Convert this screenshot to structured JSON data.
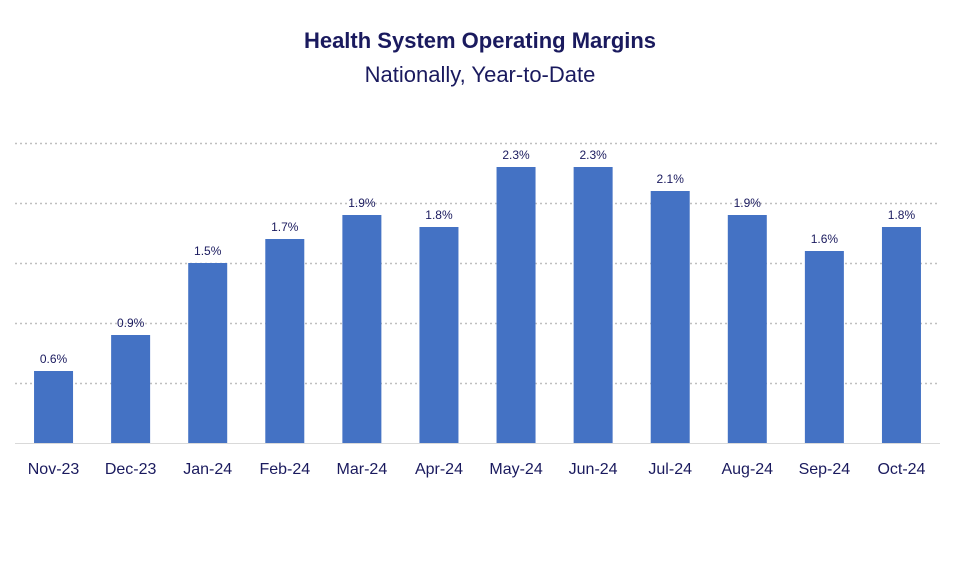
{
  "chart_data": {
    "type": "bar",
    "title": "Health System Operating Margins",
    "subtitle": "Nationally, Year-to-Date",
    "xlabel": "",
    "ylabel": "",
    "categories": [
      "Nov-23",
      "Dec-23",
      "Jan-24",
      "Feb-24",
      "Mar-24",
      "Apr-24",
      "May-24",
      "Jun-24",
      "Jul-24",
      "Aug-24",
      "Sep-24",
      "Oct-24"
    ],
    "values": [
      0.6,
      0.9,
      1.5,
      1.7,
      1.9,
      1.8,
      2.3,
      2.3,
      2.1,
      1.9,
      1.6,
      1.8
    ],
    "data_labels": [
      "0.6%",
      "0.9%",
      "1.5%",
      "1.7%",
      "1.9%",
      "1.8%",
      "2.3%",
      "2.3%",
      "2.1%",
      "1.9%",
      "1.6%",
      "1.8%"
    ],
    "ylim": [
      0,
      2.5
    ],
    "gridlines": [
      0.5,
      1.0,
      1.5,
      2.0,
      2.5
    ],
    "grid": true,
    "legend": "none",
    "bar_color": "#4472c4",
    "grid_color": "#bfbfbf",
    "text_color": "#1a1a5e"
  }
}
